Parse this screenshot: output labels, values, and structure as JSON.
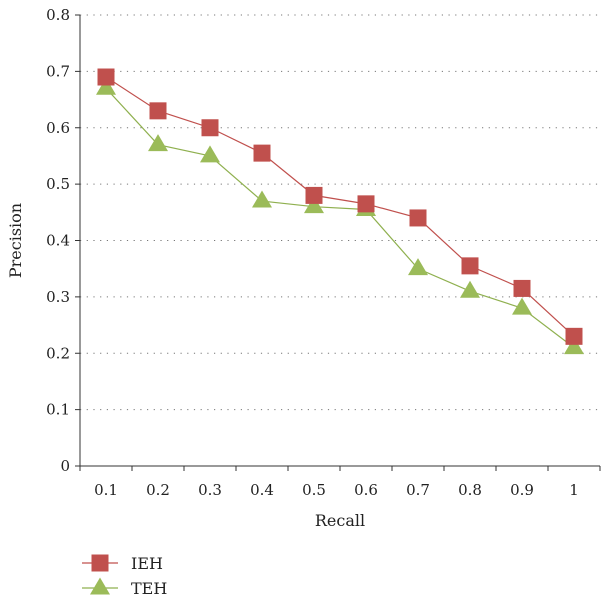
{
  "chart_data": {
    "type": "line",
    "xlabel": "Recall",
    "ylabel": "Precision",
    "x": [
      0.1,
      0.2,
      0.3,
      0.4,
      0.5,
      0.6,
      0.7,
      0.8,
      0.9,
      1
    ],
    "x_tick_labels": [
      "0.1",
      "0.2",
      "0.3",
      "0.4",
      "0.5",
      "0.6",
      "0.7",
      "0.8",
      "0.9",
      "1"
    ],
    "y_tick_labels": [
      "0",
      "0.1",
      "0.2",
      "0.3",
      "0.4",
      "0.5",
      "0.6",
      "0.7",
      "0.8"
    ],
    "ylim": [
      0,
      0.8
    ],
    "grid": "horizontal dotted",
    "legend_position": "bottom-left, below chart",
    "series": [
      {
        "name": "IEH",
        "marker": "square",
        "color": "#c0504d",
        "line_color": "#c0504d",
        "values": [
          0.69,
          0.63,
          0.6,
          0.555,
          0.48,
          0.465,
          0.44,
          0.355,
          0.315,
          0.23
        ]
      },
      {
        "name": "TEH",
        "marker": "triangle",
        "color": "#9bbb59",
        "line_color": "#8fb04f",
        "values": [
          0.67,
          0.57,
          0.55,
          0.47,
          0.46,
          0.455,
          0.35,
          0.31,
          0.28,
          0.21
        ]
      }
    ]
  }
}
